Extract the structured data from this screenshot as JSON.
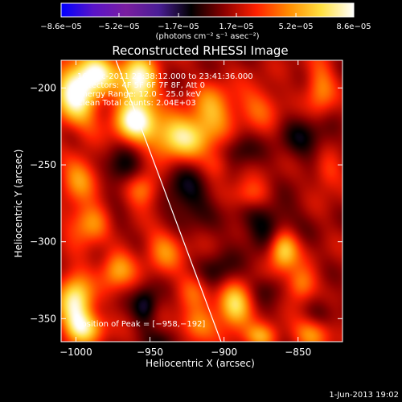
{
  "chart_data": {
    "type": "heatmap",
    "title": "Reconstructed RHESSI Image",
    "xlabel": "Heliocentric X (arcsec)",
    "ylabel": "Heliocentric Y (arcsec)",
    "xlim": [
      -1010,
      -820
    ],
    "ylim": [
      -365,
      -182
    ],
    "x_ticks": [
      -1000,
      -950,
      -900,
      -850
    ],
    "x_tick_labels": [
      "−1000",
      "−950",
      "−900",
      "−850"
    ],
    "y_ticks": [
      -200,
      -250,
      -300,
      -350
    ],
    "y_tick_labels": [
      "−200",
      "−250",
      "−300",
      "−350"
    ],
    "colorbar": {
      "vmin": -8.6e-05,
      "vmax": 8.6e-05,
      "ticks": [
        -8.6e-05,
        -5.2e-05,
        -1.7e-05,
        1.7e-05,
        5.2e-05,
        8.6e-05
      ],
      "tick_labels": [
        "−8.6e−05",
        "−5.2e−05",
        "−1.7e−05",
        "1.7e−05",
        "5.2e−05",
        "8.6e−05"
      ],
      "unit_label": "(photons cm⁻² s⁻¹ asec⁻²)",
      "colors": [
        "#0000ff",
        "#5a14c8",
        "#7a1ea0",
        "#4a1e96",
        "#000000",
        "#8a0000",
        "#ff2000",
        "#ff8c00",
        "#ffe040",
        "#ffffff"
      ]
    },
    "annotations": [
      "16‑Dec‑2011 23:38:12.000 to 23:41:36.000",
      "Detectors: 4F 5F 6F 7F 8F, Att 0",
      "Energy Range: 12.0 – 25.0 keV",
      "Clean     Total counts: 2.04E+03"
    ],
    "peak_label": "Position of Peak = [−958,−192]",
    "peak": [
      -958,
      -192
    ],
    "limb_line": [
      [
        -973,
        -182
      ],
      [
        -902,
        -365
      ]
    ],
    "blobs": [
      {
        "x": -1000,
        "y": -205,
        "amp": 1.0,
        "sx": 10,
        "sy": 16
      },
      {
        "x": -985,
        "y": -190,
        "amp": 0.8,
        "sx": 9,
        "sy": 9
      },
      {
        "x": -958,
        "y": -196,
        "amp": 1.0,
        "sx": 9,
        "sy": 12
      },
      {
        "x": -960,
        "y": -222,
        "amp": 0.9,
        "sx": 10,
        "sy": 9
      },
      {
        "x": -930,
        "y": -232,
        "amp": 0.85,
        "sx": 14,
        "sy": 10
      },
      {
        "x": -908,
        "y": -215,
        "amp": 0.55,
        "sx": 10,
        "sy": 12
      },
      {
        "x": -877,
        "y": -212,
        "amp": 0.35,
        "sx": 11,
        "sy": 10
      },
      {
        "x": -835,
        "y": -200,
        "amp": 0.45,
        "sx": 7,
        "sy": 14
      },
      {
        "x": -998,
        "y": -258,
        "amp": 0.5,
        "sx": 9,
        "sy": 10
      },
      {
        "x": -990,
        "y": -288,
        "amp": 0.55,
        "sx": 11,
        "sy": 9
      },
      {
        "x": -955,
        "y": -266,
        "amp": 0.5,
        "sx": 8,
        "sy": 8
      },
      {
        "x": -940,
        "y": -305,
        "amp": 0.45,
        "sx": 9,
        "sy": 10
      },
      {
        "x": -972,
        "y": -318,
        "amp": 0.55,
        "sx": 8,
        "sy": 9
      },
      {
        "x": -1000,
        "y": -340,
        "amp": 0.9,
        "sx": 8,
        "sy": 14
      },
      {
        "x": -993,
        "y": -356,
        "amp": 0.6,
        "sx": 9,
        "sy": 7
      },
      {
        "x": -918,
        "y": -355,
        "amp": 0.5,
        "sx": 9,
        "sy": 8
      },
      {
        "x": -893,
        "y": -342,
        "amp": 0.8,
        "sx": 8,
        "sy": 10
      },
      {
        "x": -860,
        "y": -305,
        "amp": 0.85,
        "sx": 7,
        "sy": 9
      },
      {
        "x": -848,
        "y": -328,
        "amp": 0.5,
        "sx": 7,
        "sy": 8
      },
      {
        "x": -882,
        "y": -270,
        "amp": 0.35,
        "sx": 9,
        "sy": 7
      },
      {
        "x": -840,
        "y": -360,
        "amp": 0.55,
        "sx": 9,
        "sy": 7
      },
      {
        "x": -875,
        "y": -362,
        "amp": 0.5,
        "sx": 8,
        "sy": 6
      },
      {
        "x": -830,
        "y": -255,
        "amp": 0.3,
        "sx": 7,
        "sy": 9
      },
      {
        "x": -905,
        "y": -250,
        "amp": 0.3,
        "sx": 7,
        "sy": 7
      },
      {
        "x": -920,
        "y": -330,
        "amp": 0.35,
        "sx": 8,
        "sy": 9
      }
    ],
    "holes": [
      {
        "x": -968,
        "y": -253,
        "amp": 0.9,
        "sx": 9,
        "sy": 9
      },
      {
        "x": -925,
        "y": -270,
        "amp": 0.85,
        "sx": 12,
        "sy": 14
      },
      {
        "x": -870,
        "y": -290,
        "amp": 0.9,
        "sx": 14,
        "sy": 12
      },
      {
        "x": -845,
        "y": -232,
        "amp": 0.7,
        "sx": 12,
        "sy": 12
      },
      {
        "x": -953,
        "y": -342,
        "amp": 1.0,
        "sx": 6,
        "sy": 9
      },
      {
        "x": -905,
        "y": -320,
        "amp": 0.7,
        "sx": 10,
        "sy": 9
      },
      {
        "x": -1003,
        "y": -232,
        "amp": 0.5,
        "sx": 7,
        "sy": 8
      },
      {
        "x": -975,
        "y": -290,
        "amp": 0.55,
        "sx": 7,
        "sy": 8
      },
      {
        "x": -890,
        "y": -240,
        "amp": 0.6,
        "sx": 9,
        "sy": 8
      },
      {
        "x": -835,
        "y": -345,
        "amp": 0.5,
        "sx": 8,
        "sy": 8
      },
      {
        "x": -940,
        "y": -365,
        "amp": 0.5,
        "sx": 10,
        "sy": 6
      },
      {
        "x": -870,
        "y": -330,
        "amp": 0.45,
        "sx": 8,
        "sy": 7
      }
    ]
  },
  "footer": {
    "date": "1‑Jun‑2013 19:02"
  }
}
